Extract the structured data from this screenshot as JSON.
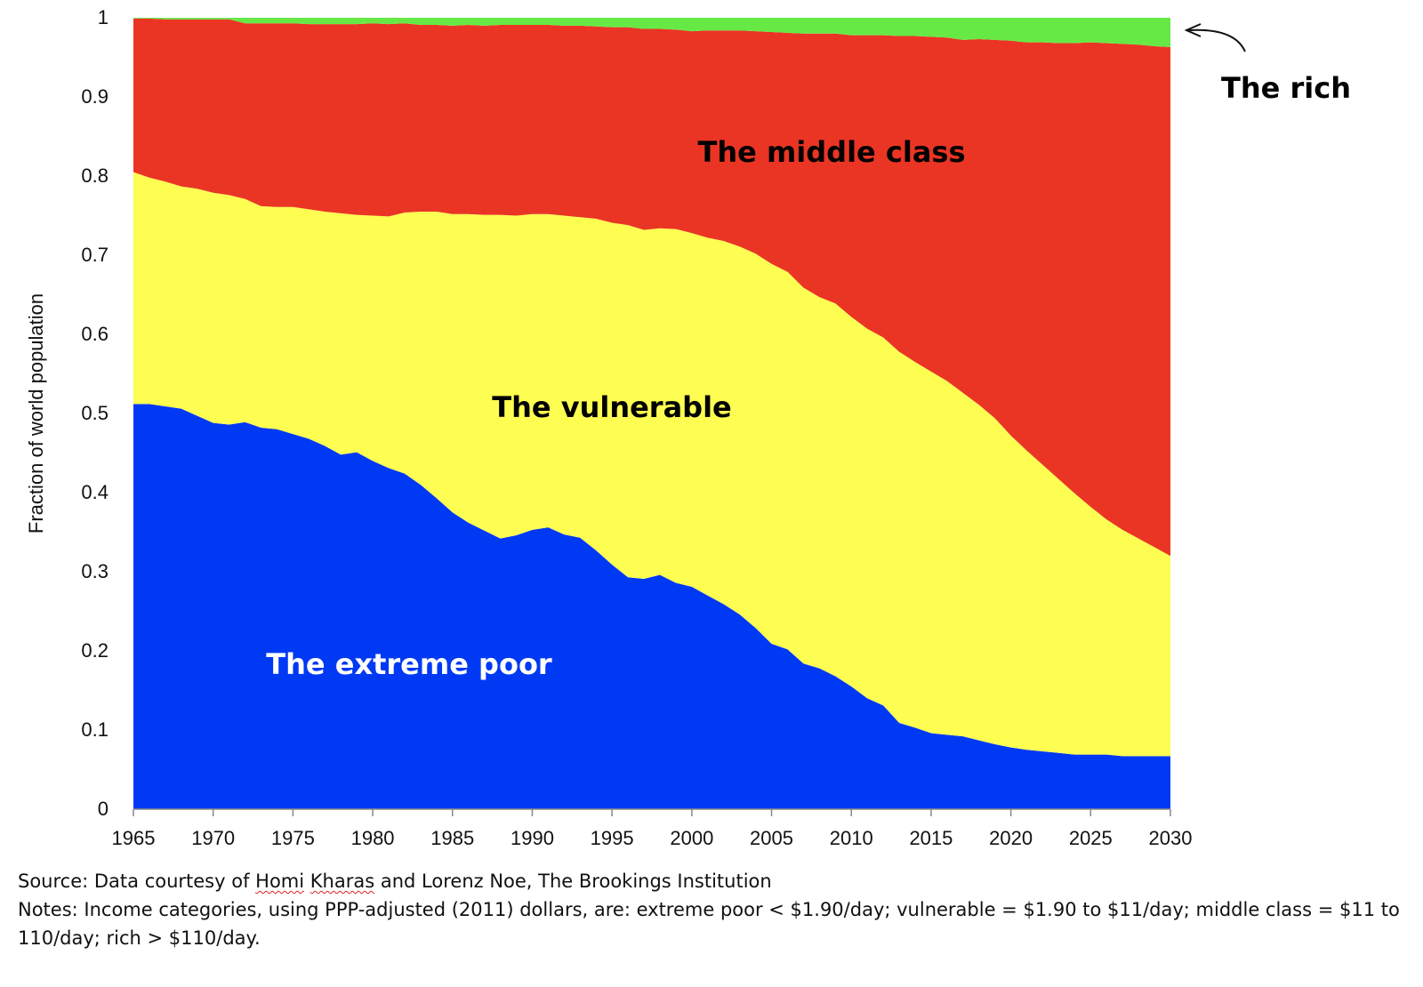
{
  "chart_data": {
    "type": "area",
    "stacked": true,
    "ylabel": "Fraction of world population",
    "xlim": [
      1965,
      2030
    ],
    "ylim": [
      0,
      1
    ],
    "x_ticks": [
      "1965",
      "1970",
      "1975",
      "1980",
      "1985",
      "1990",
      "1995",
      "2000",
      "2005",
      "2010",
      "2015",
      "2020",
      "2025",
      "2030"
    ],
    "y_ticks": [
      "0",
      "0.1",
      "0.2",
      "0.3",
      "0.4",
      "0.5",
      "0.6",
      "0.7",
      "0.8",
      "0.9",
      "1"
    ],
    "x": [
      1965,
      1966,
      1967,
      1968,
      1969,
      1970,
      1971,
      1972,
      1973,
      1974,
      1975,
      1976,
      1977,
      1978,
      1979,
      1980,
      1981,
      1982,
      1983,
      1984,
      1985,
      1986,
      1987,
      1988,
      1989,
      1990,
      1991,
      1992,
      1993,
      1994,
      1995,
      1996,
      1997,
      1998,
      1999,
      2000,
      2001,
      2002,
      2003,
      2004,
      2005,
      2006,
      2007,
      2008,
      2009,
      2010,
      2011,
      2012,
      2013,
      2014,
      2015,
      2016,
      2017,
      2018,
      2019,
      2020,
      2021,
      2022,
      2023,
      2024,
      2025,
      2026,
      2027,
      2028,
      2029,
      2030
    ],
    "series": [
      {
        "name": "The extreme poor",
        "color": "#0039f4",
        "label_color": "#ffffff",
        "values": [
          0.512,
          0.512,
          0.509,
          0.506,
          0.497,
          0.488,
          0.486,
          0.489,
          0.482,
          0.48,
          0.474,
          0.468,
          0.459,
          0.448,
          0.451,
          0.44,
          0.431,
          0.424,
          0.41,
          0.393,
          0.375,
          0.362,
          0.352,
          0.342,
          0.346,
          0.353,
          0.356,
          0.347,
          0.343,
          0.327,
          0.309,
          0.293,
          0.291,
          0.296,
          0.286,
          0.281,
          0.27,
          0.259,
          0.246,
          0.229,
          0.209,
          0.202,
          0.184,
          0.178,
          0.168,
          0.155,
          0.14,
          0.131,
          0.109,
          0.103,
          0.096,
          0.094,
          0.092,
          0.087,
          0.082,
          0.078,
          0.075,
          0.073,
          0.071,
          0.069,
          0.069,
          0.069,
          0.067,
          0.067,
          0.067,
          0.067
        ]
      },
      {
        "name": "The vulnerable",
        "color": "#fdfd52",
        "label_color": "#000000",
        "values": [
          0.293,
          0.286,
          0.284,
          0.281,
          0.287,
          0.291,
          0.29,
          0.282,
          0.28,
          0.281,
          0.287,
          0.29,
          0.296,
          0.305,
          0.3,
          0.31,
          0.318,
          0.33,
          0.345,
          0.362,
          0.377,
          0.39,
          0.399,
          0.409,
          0.404,
          0.399,
          0.396,
          0.403,
          0.405,
          0.419,
          0.432,
          0.445,
          0.441,
          0.438,
          0.447,
          0.447,
          0.452,
          0.459,
          0.465,
          0.473,
          0.48,
          0.477,
          0.475,
          0.469,
          0.471,
          0.467,
          0.467,
          0.465,
          0.469,
          0.462,
          0.457,
          0.447,
          0.434,
          0.424,
          0.412,
          0.394,
          0.378,
          0.362,
          0.346,
          0.33,
          0.313,
          0.297,
          0.286,
          0.275,
          0.264,
          0.253
        ]
      },
      {
        "name": "The middle class",
        "color": "#ea3524",
        "label_color": "#000000",
        "values": [
          0.194,
          0.201,
          0.205,
          0.211,
          0.214,
          0.219,
          0.222,
          0.222,
          0.231,
          0.232,
          0.232,
          0.234,
          0.237,
          0.239,
          0.241,
          0.243,
          0.243,
          0.239,
          0.236,
          0.236,
          0.238,
          0.239,
          0.239,
          0.24,
          0.241,
          0.239,
          0.239,
          0.24,
          0.242,
          0.243,
          0.247,
          0.25,
          0.254,
          0.252,
          0.252,
          0.255,
          0.262,
          0.266,
          0.273,
          0.281,
          0.293,
          0.302,
          0.321,
          0.333,
          0.341,
          0.356,
          0.371,
          0.382,
          0.399,
          0.412,
          0.423,
          0.434,
          0.446,
          0.462,
          0.478,
          0.499,
          0.516,
          0.534,
          0.551,
          0.569,
          0.587,
          0.602,
          0.614,
          0.624,
          0.633,
          0.643
        ]
      },
      {
        "name": "The rich",
        "color": "#67e945",
        "label_color": "#000000",
        "values": [
          0.001,
          0.001,
          0.002,
          0.002,
          0.002,
          0.002,
          0.002,
          0.007,
          0.007,
          0.007,
          0.007,
          0.008,
          0.008,
          0.008,
          0.008,
          0.007,
          0.008,
          0.007,
          0.009,
          0.009,
          0.01,
          0.009,
          0.01,
          0.009,
          0.009,
          0.009,
          0.009,
          0.01,
          0.01,
          0.011,
          0.012,
          0.012,
          0.014,
          0.014,
          0.015,
          0.017,
          0.016,
          0.016,
          0.016,
          0.017,
          0.018,
          0.019,
          0.02,
          0.02,
          0.02,
          0.022,
          0.022,
          0.022,
          0.023,
          0.023,
          0.024,
          0.025,
          0.028,
          0.027,
          0.028,
          0.029,
          0.031,
          0.031,
          0.032,
          0.032,
          0.031,
          0.032,
          0.033,
          0.034,
          0.036,
          0.037
        ]
      }
    ]
  },
  "labels": {
    "extreme_poor": "The extreme poor",
    "vulnerable": "The vulnerable",
    "middle_class": "The middle class",
    "rich": "The rich"
  },
  "notes": {
    "source_prefix": "Source: Data courtesy of ",
    "source_name_1": "Homi",
    "source_name_2": "Kharas",
    "source_suffix": " and Lorenz Noe, The Brookings Institution",
    "notes_text": "Notes: Income categories, using PPP-adjusted (2011) dollars, are: extreme poor < $1.90/day; vulnerable = $1.90 to $11/day; middle class = $11 to 110/day; rich > $110/day."
  }
}
